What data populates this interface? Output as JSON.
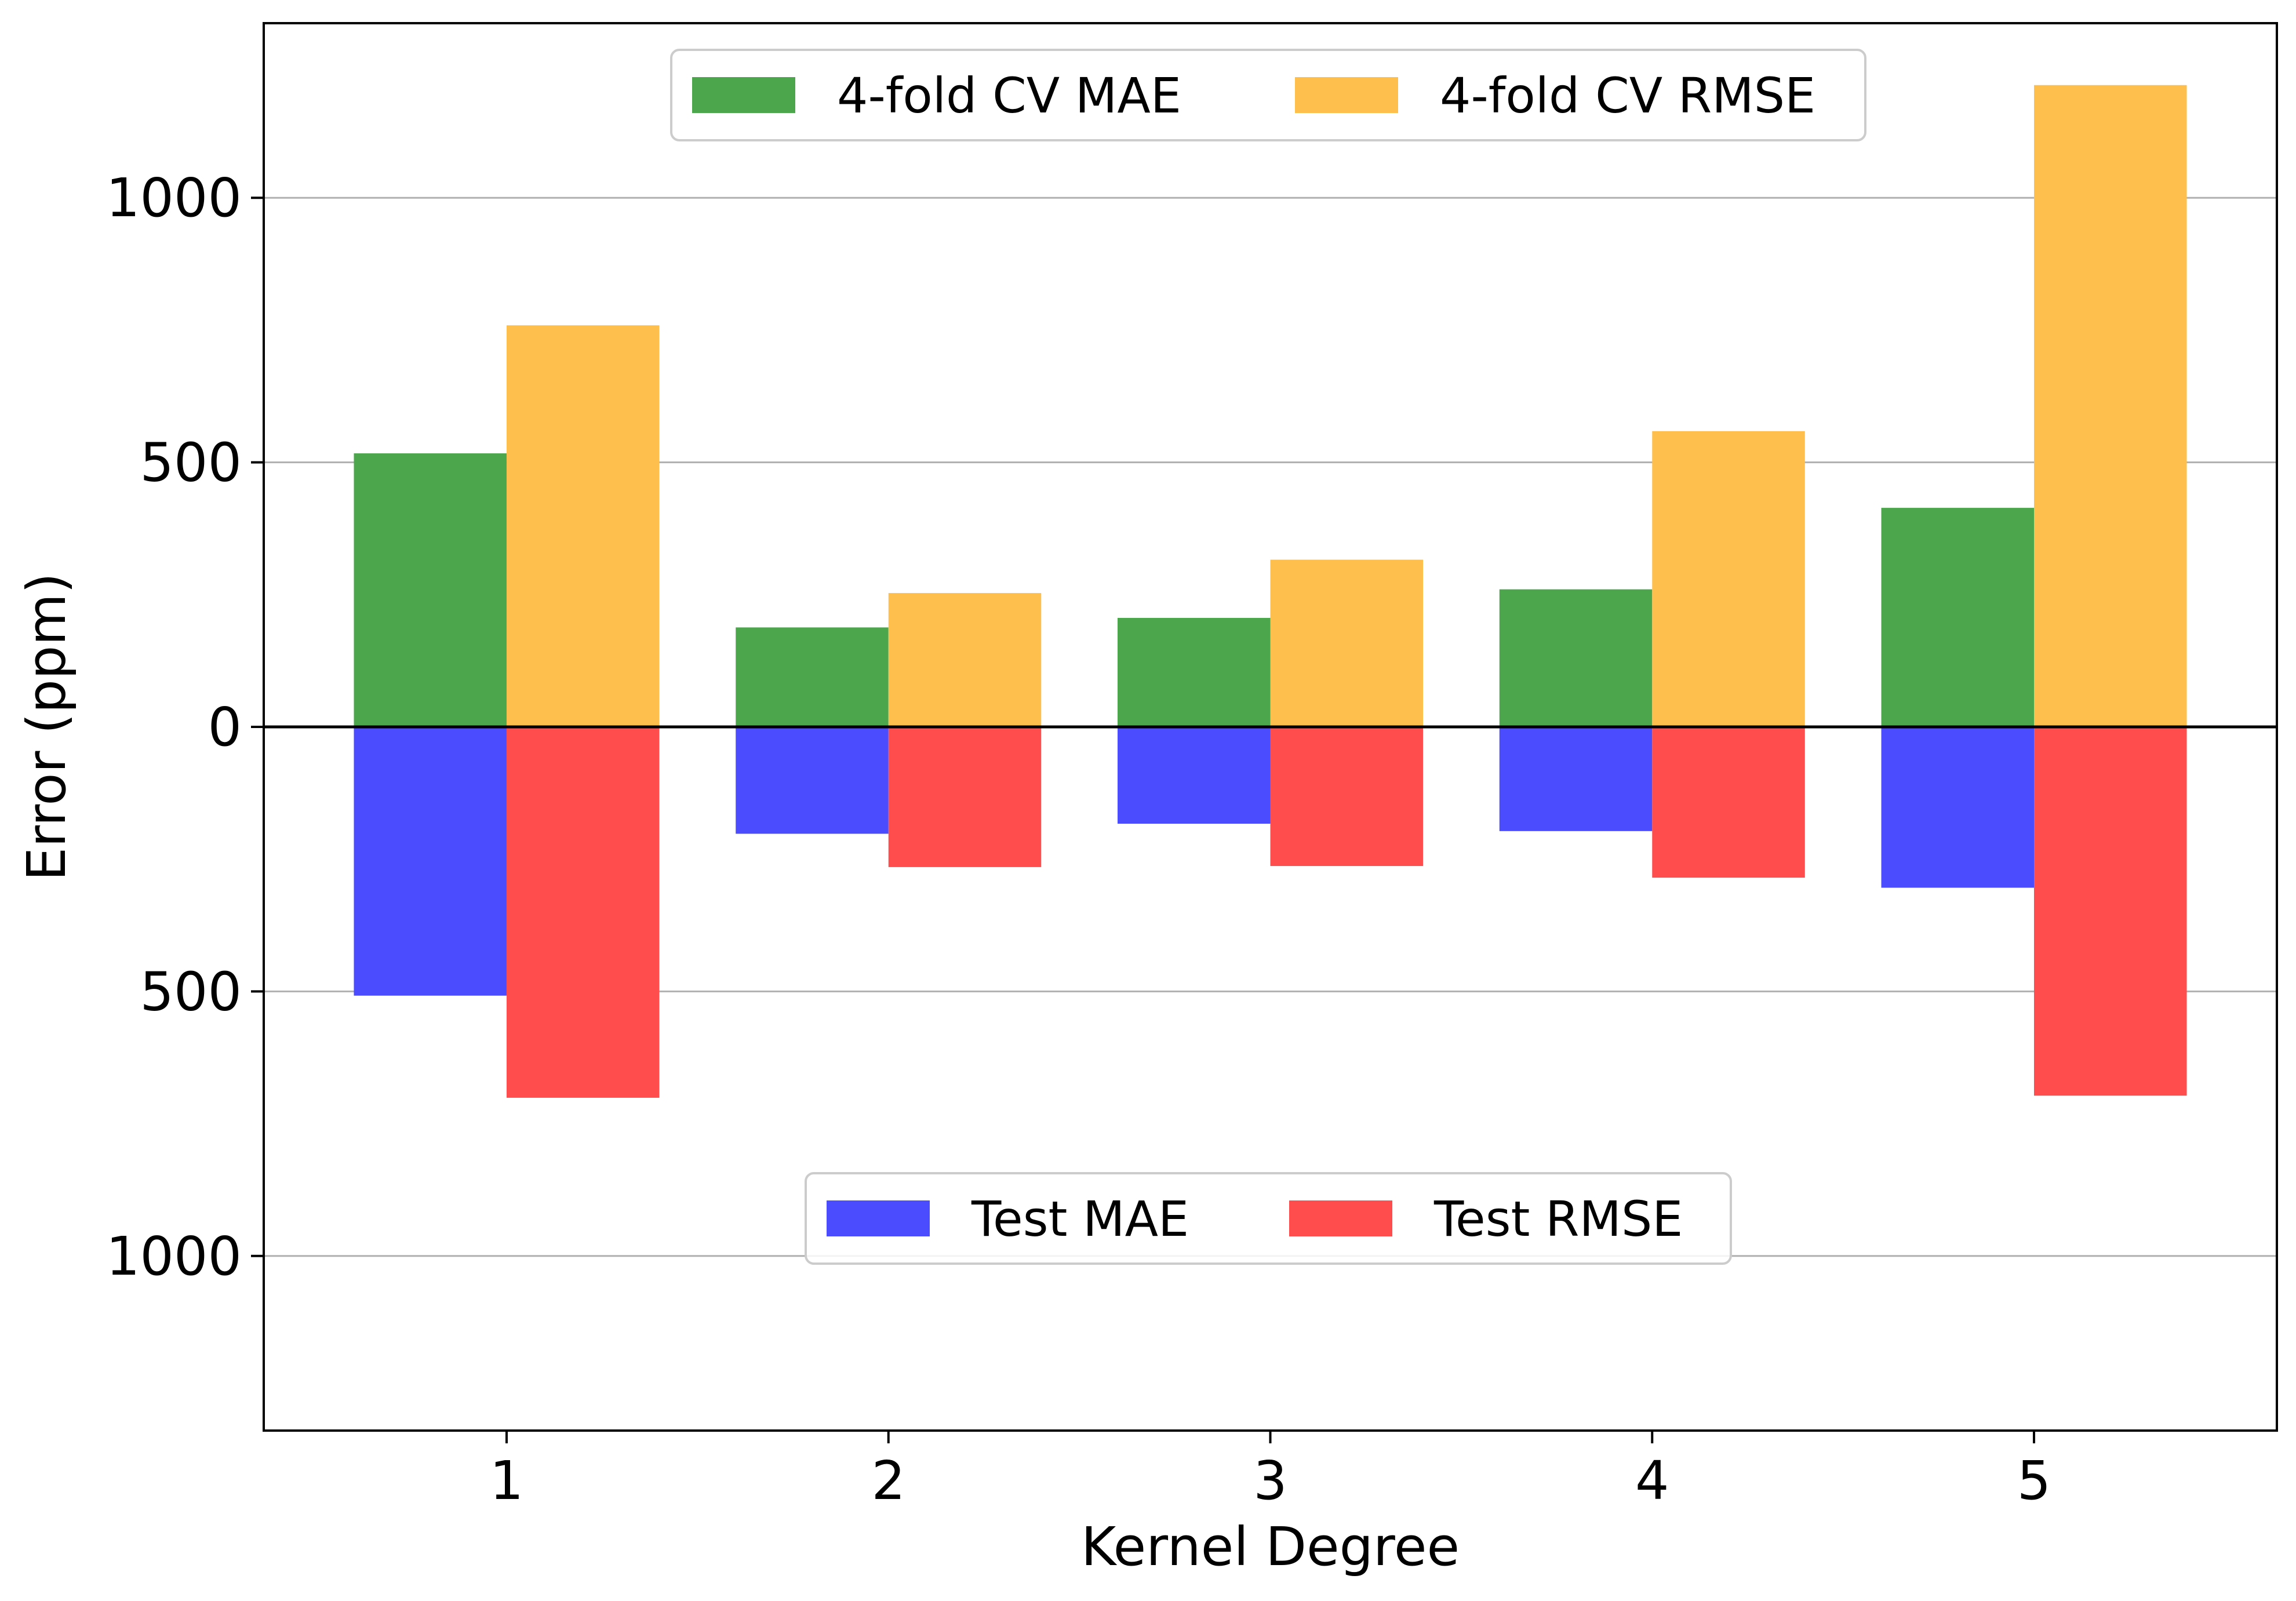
{
  "chart_data": {
    "type": "bar",
    "xlabel": "Kernel Degree",
    "ylabel": "Error (ppm)",
    "categories": [
      "1",
      "2",
      "3",
      "4",
      "5"
    ],
    "ylim": [
      -1330,
      1330
    ],
    "y_ticks": [
      {
        "value": 1000,
        "label": "1000"
      },
      {
        "value": 500,
        "label": "500"
      },
      {
        "value": 0,
        "label": "0"
      },
      {
        "value": -500,
        "label": "500"
      },
      {
        "value": -1000,
        "label": "1000"
      }
    ],
    "grid": "horizontal",
    "series": [
      {
        "name": "4-fold CV MAE",
        "color": "#4ca64c",
        "direction": "up",
        "values": [
          517,
          188,
          206,
          260,
          414
        ]
      },
      {
        "name": "4-fold CV RMSE",
        "color": "#ffbf4c",
        "direction": "up",
        "values": [
          759,
          253,
          316,
          559,
          1213
        ]
      },
      {
        "name": "Test MAE",
        "color": "#4c4cff",
        "direction": "down",
        "values": [
          -508,
          -202,
          -183,
          -197,
          -304
        ]
      },
      {
        "name": "Test RMSE",
        "color": "#ff4c4c",
        "direction": "down",
        "values": [
          -701,
          -265,
          -263,
          -285,
          -697
        ]
      }
    ],
    "legends": [
      {
        "placement": "upper-center",
        "entries": [
          "4-fold CV MAE",
          "4-fold CV RMSE"
        ]
      },
      {
        "placement": "lower-center",
        "entries": [
          "Test MAE",
          "Test RMSE"
        ]
      }
    ]
  }
}
